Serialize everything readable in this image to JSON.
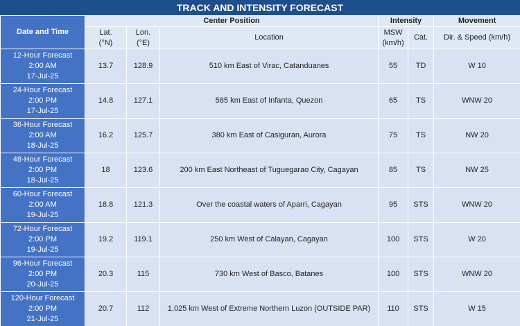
{
  "title": "TRACK AND INTENSITY FORECAST",
  "header": {
    "date_time": "Date and Time",
    "center_position": "Center Position",
    "intensity": "Intensity",
    "movement": "Movement",
    "columns": {
      "lat": [
        "Lat.",
        "(°N)"
      ],
      "lon": [
        "Lon.",
        "(°E)"
      ],
      "location": "Location",
      "msw": [
        "MSW",
        "(km/h)"
      ],
      "cat": "Cat.",
      "dir_speed": "Dir. & Speed (km/h)"
    }
  },
  "rows": [
    {
      "forecast": "12-Hour Forecast",
      "time": "2:00 AM",
      "date": "17-Jul-25",
      "lat": 13.7,
      "lon": 128.9,
      "location": "510 km East of Virac, Catanduanes",
      "msw": 55,
      "cat": "TD",
      "movement": "W 10"
    },
    {
      "forecast": "24-Hour Forecast",
      "time": "2:00 PM",
      "date": "17-Jul-25",
      "lat": 14.8,
      "lon": 127.1,
      "location": "585 km East of Infanta, Quezon",
      "msw": 65,
      "cat": "TS",
      "movement": "WNW 20"
    },
    {
      "forecast": "36-Hour Forecast",
      "time": "2:00 AM",
      "date": "18-Jul-25",
      "lat": 16.2,
      "lon": 125.7,
      "location": "380 km East of Casiguran, Aurora",
      "msw": 75,
      "cat": "TS",
      "movement": "NW 20"
    },
    {
      "forecast": "48-Hour Forecast",
      "time": "2:00 PM",
      "date": "18-Jul-25",
      "lat": 18,
      "lon": 123.6,
      "location": "200 km East Northeast of Tuguegarao City, Cagayan",
      "msw": 85,
      "cat": "TS",
      "movement": "NW 25"
    },
    {
      "forecast": "60-Hour Forecast",
      "time": "2:00 AM",
      "date": "19-Jul-25",
      "lat": 18.8,
      "lon": 121.3,
      "location": "Over the coastal waters of Aparri, Cagayan",
      "msw": 95,
      "cat": "STS",
      "movement": "WNW 20"
    },
    {
      "forecast": "72-Hour Forecast",
      "time": "2:00 PM",
      "date": "19-Jul-25",
      "lat": 19.2,
      "lon": 119.1,
      "location": "250 km West of Calayan, Cagayan",
      "msw": 100,
      "cat": "STS",
      "movement": "W 20"
    },
    {
      "forecast": "96-Hour Forecast",
      "time": "2:00 PM",
      "date": "20-Jul-25",
      "lat": 20.3,
      "lon": 115,
      "location": "730 km West of Basco, Batanes",
      "msw": 100,
      "cat": "STS",
      "movement": "WNW 20"
    },
    {
      "forecast": "120-Hour Forecast",
      "time": "2:00 PM",
      "date": "21-Jul-25",
      "lat": 20.7,
      "lon": 112,
      "location": "1,025 km West of Extreme Northern Luzon (OUTSIDE PAR)",
      "msw": 110,
      "cat": "STS",
      "movement": "W 15"
    }
  ]
}
